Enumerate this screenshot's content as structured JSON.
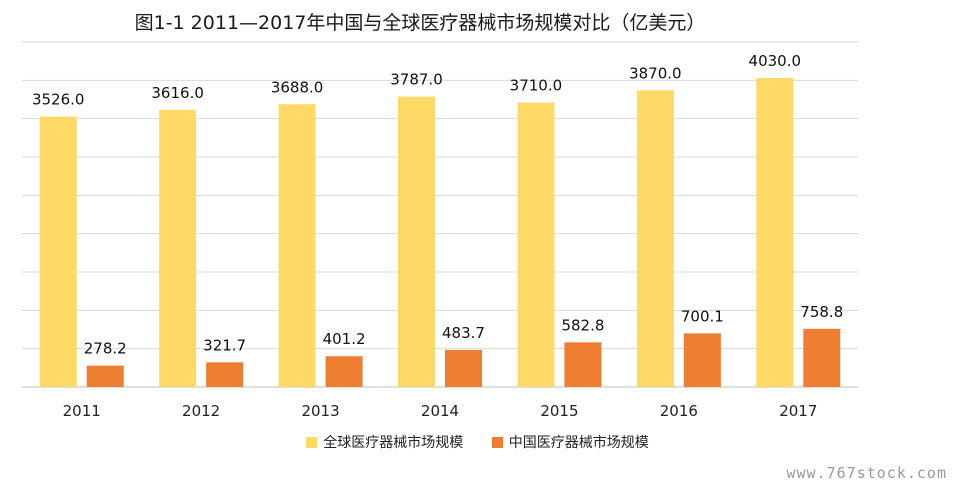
{
  "title": "图1-1 2011—2017年中国与全球医疗器械市场规模对比（亿美元）",
  "watermark": "www.767stock.com",
  "colors": {
    "global": "#FFD966",
    "china": "#ED7D31",
    "grid": "#D9D9D9",
    "axis": "#BFBFBF"
  },
  "chart_data": {
    "type": "bar",
    "categories": [
      "2011",
      "2012",
      "2013",
      "2014",
      "2015",
      "2016",
      "2017"
    ],
    "series": [
      {
        "name": "全球医疗器械市场规模",
        "values": [
          3526.0,
          3616.0,
          3688.0,
          3787.0,
          3710.0,
          3870.0,
          4030.0
        ],
        "labels": [
          "3526.0",
          "3616.0",
          "3688.0",
          "3787.0",
          "3710.0",
          "3870.0",
          "4030.0"
        ]
      },
      {
        "name": "中国医疗器械市场规模",
        "values": [
          278.2,
          321.7,
          401.2,
          483.7,
          582.8,
          700.1,
          758.8
        ],
        "labels": [
          "278.2",
          "321.7",
          "401.2",
          "483.7",
          "582.8",
          "700.1",
          "758.8"
        ]
      }
    ],
    "ylim": [
      0,
      4500
    ],
    "grid": true,
    "y_tick_labels_visible": false,
    "legend_position": "bottom"
  }
}
